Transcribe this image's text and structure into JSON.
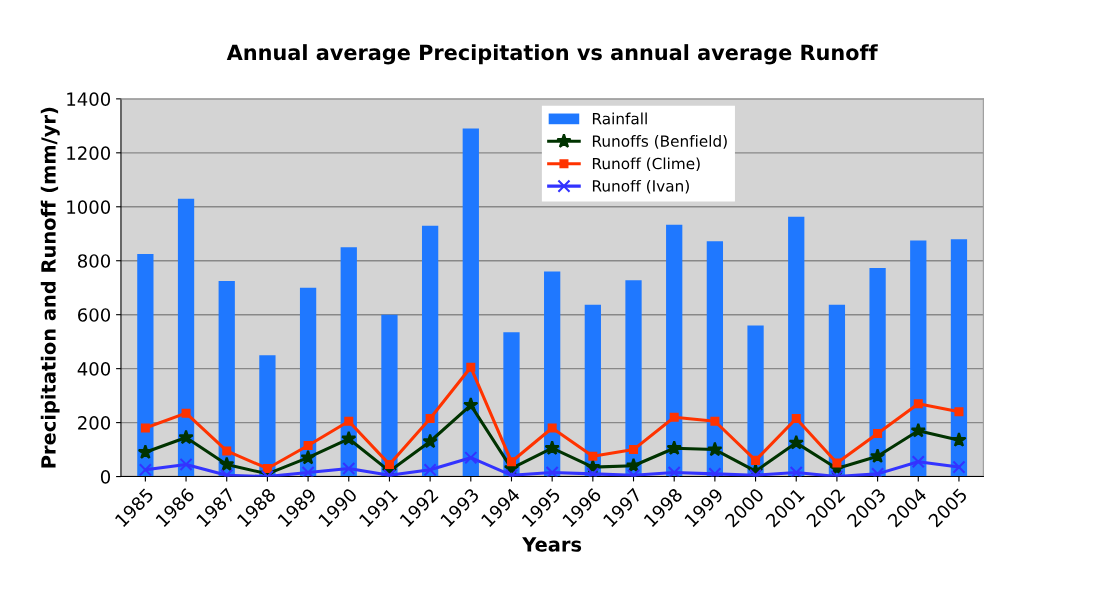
{
  "chart_data": {
    "type": "bar",
    "title": "Annual average Precipitation vs annual average Runoff",
    "xlabel": "Years",
    "ylabel": "Precipitation and Runoff (mm/yr)",
    "categories": [
      "1985",
      "1986",
      "1987",
      "1988",
      "1989",
      "1990",
      "1991",
      "1992",
      "1993",
      "1994",
      "1995",
      "1996",
      "1997",
      "1998",
      "1999",
      "2000",
      "2001",
      "2002",
      "2003",
      "2004",
      "2005"
    ],
    "series": [
      {
        "name": "Rainfall",
        "color": "#1f78ff",
        "values": [
          825,
          1030,
          725,
          450,
          700,
          850,
          600,
          930,
          1290,
          535,
          760,
          637,
          728,
          933,
          872,
          560,
          963,
          637,
          773,
          875,
          880
        ]
      },
      {
        "name": "Runoffs (Benfield)",
        "type": "line",
        "color": "#003300",
        "marker": "star",
        "values": [
          90,
          145,
          45,
          10,
          70,
          140,
          20,
          130,
          265,
          30,
          105,
          35,
          40,
          105,
          100,
          20,
          125,
          30,
          75,
          170,
          135
        ]
      },
      {
        "name": "Runoff (Clime)",
        "type": "line",
        "color": "#ff3300",
        "marker": "square",
        "values": [
          180,
          235,
          95,
          30,
          115,
          205,
          45,
          215,
          405,
          55,
          180,
          75,
          100,
          220,
          205,
          60,
          215,
          50,
          160,
          270,
          240
        ]
      },
      {
        "name": "Runoff (Ivan)",
        "type": "line",
        "color": "#3333ff",
        "marker": "cross",
        "values": [
          25,
          45,
          5,
          0,
          15,
          30,
          5,
          25,
          70,
          5,
          15,
          10,
          5,
          15,
          10,
          5,
          15,
          0,
          10,
          55,
          35
        ]
      }
    ],
    "ylim": [
      0,
      1400
    ],
    "yticks": [
      0,
      200,
      400,
      600,
      800,
      1000,
      1200,
      1400
    ],
    "grid": "y",
    "legend": "top center"
  }
}
